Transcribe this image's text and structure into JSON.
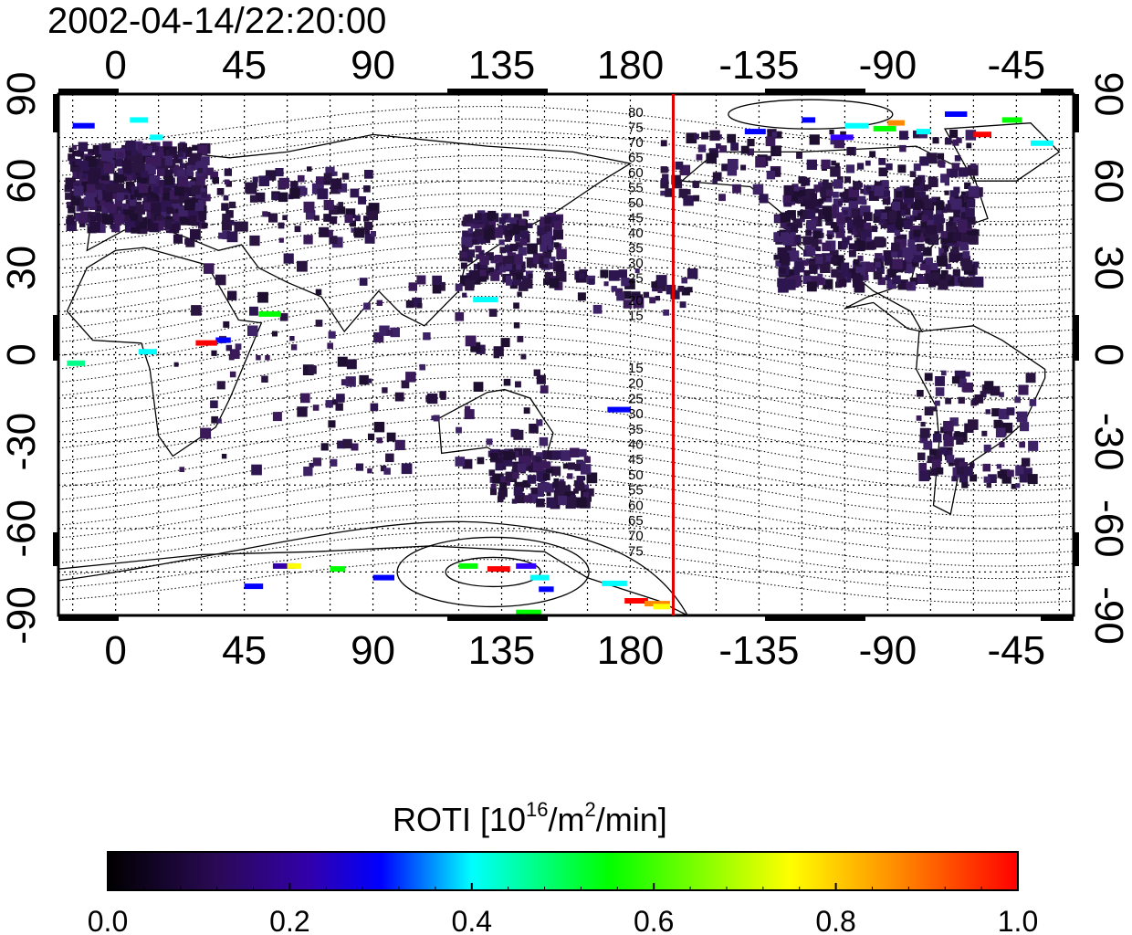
{
  "timestamp": "2002-04-14/22:20:00",
  "longitude_labels": [
    "0",
    "45",
    "90",
    "135",
    "180",
    "-135",
    "-90",
    "-45"
  ],
  "longitude_values": [
    0,
    45,
    90,
    135,
    180,
    225,
    270,
    315
  ],
  "latitude_labels": [
    "90",
    "60",
    "30",
    "0",
    "-30",
    "-60",
    "-90"
  ],
  "latitude_values": [
    90,
    60,
    30,
    0,
    -30,
    -60,
    -90
  ],
  "map": {
    "lon_range": [
      -20,
      335
    ],
    "lat_range": [
      -90,
      90
    ],
    "grid": true,
    "marker_longitude": 195,
    "marker_color": "#e00000"
  },
  "contour_labels_north": [
    "80",
    "75",
    "70",
    "65",
    "60",
    "55",
    "50",
    "45",
    "40",
    "35",
    "30",
    "25",
    "20",
    "15"
  ],
  "contour_labels_south": [
    "15",
    "20",
    "25",
    "30",
    "35",
    "40",
    "45",
    "50",
    "55",
    "60",
    "65",
    "70",
    "75"
  ],
  "colorbar": {
    "title_prefix": "ROTI  [10",
    "title_sup1": "16",
    "title_mid": "/m",
    "title_sup2": "2",
    "title_suffix": "/min]",
    "tick_labels": [
      "0.0",
      "0.2",
      "0.4",
      "0.6",
      "0.8",
      "1.0"
    ],
    "min": 0.0,
    "max": 1.0,
    "colors": [
      "#000000",
      "#3a0e6a",
      "#0000ff",
      "#00ffff",
      "#00ff00",
      "#ffff00",
      "#ff0000"
    ]
  },
  "colors": {
    "background_data": "#2a1440",
    "frame": "#000000"
  }
}
